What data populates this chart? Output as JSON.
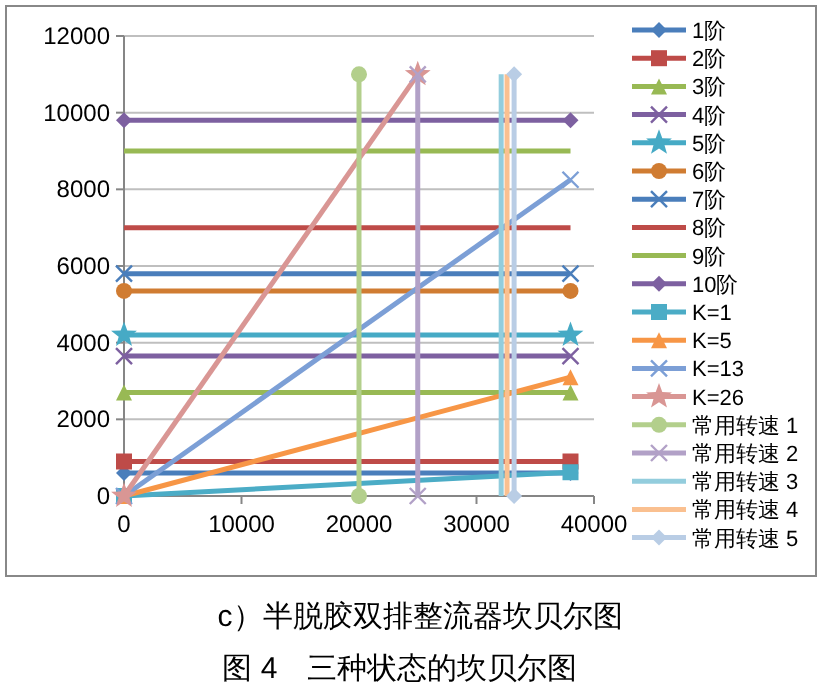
{
  "chart_data": {
    "type": "line",
    "xlim": [
      0,
      40000
    ],
    "ylim": [
      0,
      12000
    ],
    "xticks": [
      0,
      10000,
      20000,
      30000,
      40000
    ],
    "yticks": [
      0,
      2000,
      4000,
      6000,
      8000,
      10000,
      12000
    ],
    "grid": "y",
    "legend": "right",
    "annotations": [
      "c）半脱胶双排整流器坎贝尔图",
      "图 4　三种状态的坎贝尔图"
    ],
    "series": [
      {
        "name": "1阶",
        "color": "#4a7ebb",
        "marker": "diamond",
        "x": [
          0,
          38000
        ],
        "values": [
          600,
          600
        ]
      },
      {
        "name": "2阶",
        "color": "#be4b48",
        "marker": "square",
        "x": [
          0,
          38000
        ],
        "values": [
          900,
          900
        ]
      },
      {
        "name": "3阶",
        "color": "#98b954",
        "marker": "triangle",
        "x": [
          0,
          38000
        ],
        "values": [
          2700,
          2700
        ]
      },
      {
        "name": "4阶",
        "color": "#7d60a0",
        "marker": "cross",
        "x": [
          0,
          38000
        ],
        "values": [
          3650,
          3650
        ]
      },
      {
        "name": "5阶",
        "color": "#46aac5",
        "marker": "star",
        "x": [
          0,
          38000
        ],
        "values": [
          4200,
          4200
        ]
      },
      {
        "name": "6阶",
        "color": "#d07c32",
        "marker": "circle",
        "x": [
          0,
          38000
        ],
        "values": [
          5350,
          5350
        ]
      },
      {
        "name": "7阶",
        "color": "#4a7ebb",
        "marker": "cross",
        "x": [
          0,
          38000
        ],
        "values": [
          5800,
          5800
        ]
      },
      {
        "name": "8阶",
        "color": "#be4b48",
        "marker": "none",
        "x": [
          0,
          38000
        ],
        "values": [
          7000,
          7000
        ]
      },
      {
        "name": "9阶",
        "color": "#98b954",
        "marker": "none",
        "x": [
          0,
          38000
        ],
        "values": [
          9000,
          9000
        ]
      },
      {
        "name": "10阶",
        "color": "#7d60a0",
        "marker": "diamond",
        "x": [
          0,
          38000
        ],
        "values": [
          9800,
          9800
        ]
      },
      {
        "name": "K=1",
        "color": "#4bacc6",
        "marker": "square",
        "x": [
          0,
          38000
        ],
        "values": [
          0,
          620
        ]
      },
      {
        "name": "K=5",
        "color": "#f79646",
        "marker": "triangle",
        "x": [
          0,
          38000
        ],
        "values": [
          0,
          3100
        ]
      },
      {
        "name": "K=13",
        "color": "#7c9fd6",
        "marker": "cross",
        "x": [
          0,
          38000
        ],
        "values": [
          0,
          8250
        ]
      },
      {
        "name": "K=26",
        "color": "#d99694",
        "marker": "star",
        "x": [
          0,
          25000
        ],
        "values": [
          0,
          11000
        ]
      },
      {
        "name": "常用转速 1",
        "color": "#b3cf8c",
        "marker": "circle",
        "x": [
          20000,
          20000
        ],
        "values": [
          0,
          11000
        ]
      },
      {
        "name": "常用转速 2",
        "color": "#b2a1c7",
        "marker": "cross",
        "x": [
          25000,
          25000
        ],
        "values": [
          0,
          11000
        ]
      },
      {
        "name": "常用转速 3",
        "color": "#93cddd",
        "marker": "none",
        "x": [
          32100,
          32100
        ],
        "values": [
          0,
          11000
        ]
      },
      {
        "name": "常用转速 4",
        "color": "#fac090",
        "marker": "none",
        "x": [
          32600,
          32600
        ],
        "values": [
          0,
          11000
        ]
      },
      {
        "name": "常用转速 5",
        "color": "#b9cde5",
        "marker": "diamond",
        "x": [
          33200,
          33200
        ],
        "values": [
          0,
          11000
        ]
      }
    ]
  }
}
